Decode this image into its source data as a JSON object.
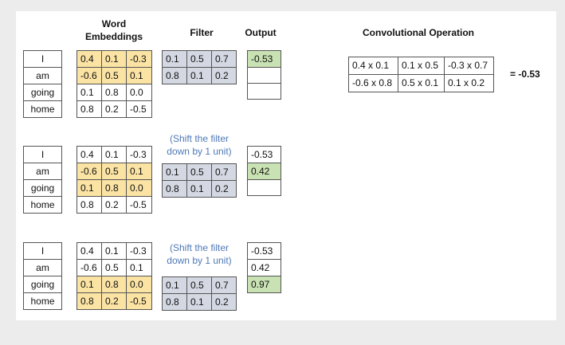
{
  "headers": {
    "word_embeddings": "Word\nEmbeddings",
    "filter": "Filter",
    "output": "Output",
    "convolutional_operation": "Convolutional Operation"
  },
  "words": [
    "I",
    "am",
    "going",
    "home"
  ],
  "embeddings": [
    [
      "0.4",
      "0.1",
      "-0.3"
    ],
    [
      "-0.6",
      "0.5",
      "0.1"
    ],
    [
      "0.1",
      "0.8",
      "0.0"
    ],
    [
      "0.8",
      "0.2",
      "-0.5"
    ]
  ],
  "filter": [
    [
      "0.1",
      "0.5",
      "0.7"
    ],
    [
      "0.8",
      "0.1",
      "0.2"
    ]
  ],
  "outputs": [
    "-0.53",
    "0.42",
    "0.97"
  ],
  "shift_note": "(Shift the filter\ndown by 1 unit)",
  "operation": [
    [
      "0.4 x 0.1",
      "0.1 x 0.5",
      "-0.3 x 0.7"
    ],
    [
      "-0.6 x 0.8",
      "0.5 x 0.1",
      "0.1 x 0.2"
    ]
  ],
  "operation_result": "= -0.53",
  "colors": {
    "embedding_highlight": "#fbe3a4",
    "filter_fill": "#d3d8e2",
    "output_highlight": "#c9e2b3",
    "note_text": "#4f79b6"
  }
}
